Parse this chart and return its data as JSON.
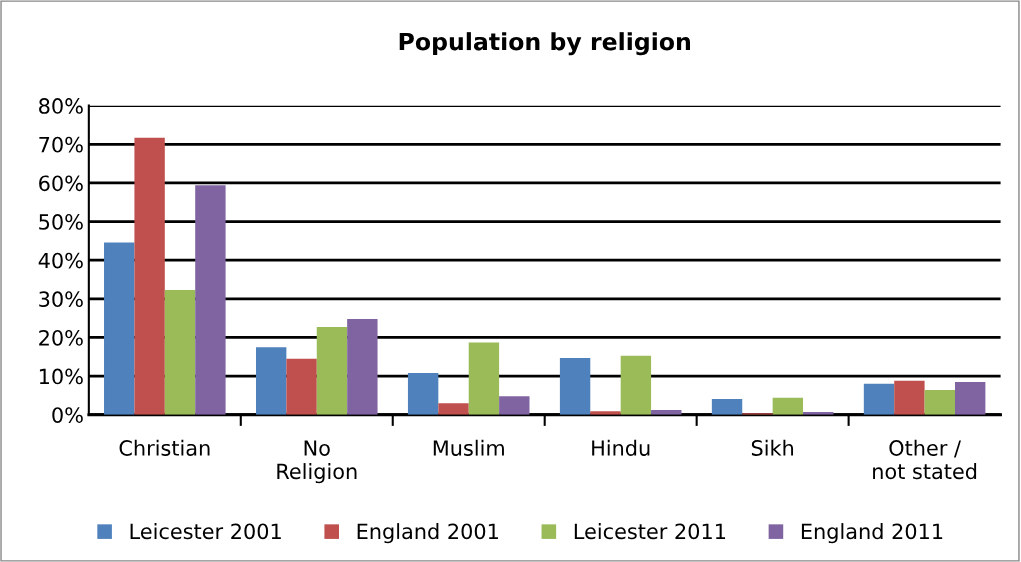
{
  "chart_data": {
    "type": "bar",
    "title": "Population by religion",
    "categories": [
      "Christian",
      "No\nReligion",
      "Muslim",
      "Hindu",
      "Sikh",
      "Other /\nnot stated"
    ],
    "series": [
      {
        "name": "Leicester 2001",
        "color": "#4f81bd",
        "values": [
          44.6,
          17.5,
          10.8,
          14.7,
          4.1,
          8.0
        ]
      },
      {
        "name": "England 2001",
        "color": "#c0504d",
        "values": [
          71.7,
          14.5,
          3.0,
          0.9,
          0.4,
          8.8
        ]
      },
      {
        "name": "Leicester 2011",
        "color": "#9bbb59",
        "values": [
          32.3,
          22.7,
          18.7,
          15.3,
          4.4,
          6.4
        ]
      },
      {
        "name": "England 2011",
        "color": "#8064a2",
        "values": [
          59.4,
          24.8,
          4.8,
          1.2,
          0.7,
          8.5
        ]
      }
    ],
    "ylim": [
      0,
      80
    ],
    "yticks": [
      {
        "value": 0,
        "label": "0%"
      },
      {
        "value": 10,
        "label": "10%"
      },
      {
        "value": 20,
        "label": "20%"
      },
      {
        "value": 30,
        "label": "30%"
      },
      {
        "value": 40,
        "label": "40%"
      },
      {
        "value": 50,
        "label": "50%"
      },
      {
        "value": 60,
        "label": "60%"
      },
      {
        "value": 70,
        "label": "70%"
      },
      {
        "value": 80,
        "label": "80%"
      }
    ],
    "grid": "y",
    "legend": "bottom"
  }
}
